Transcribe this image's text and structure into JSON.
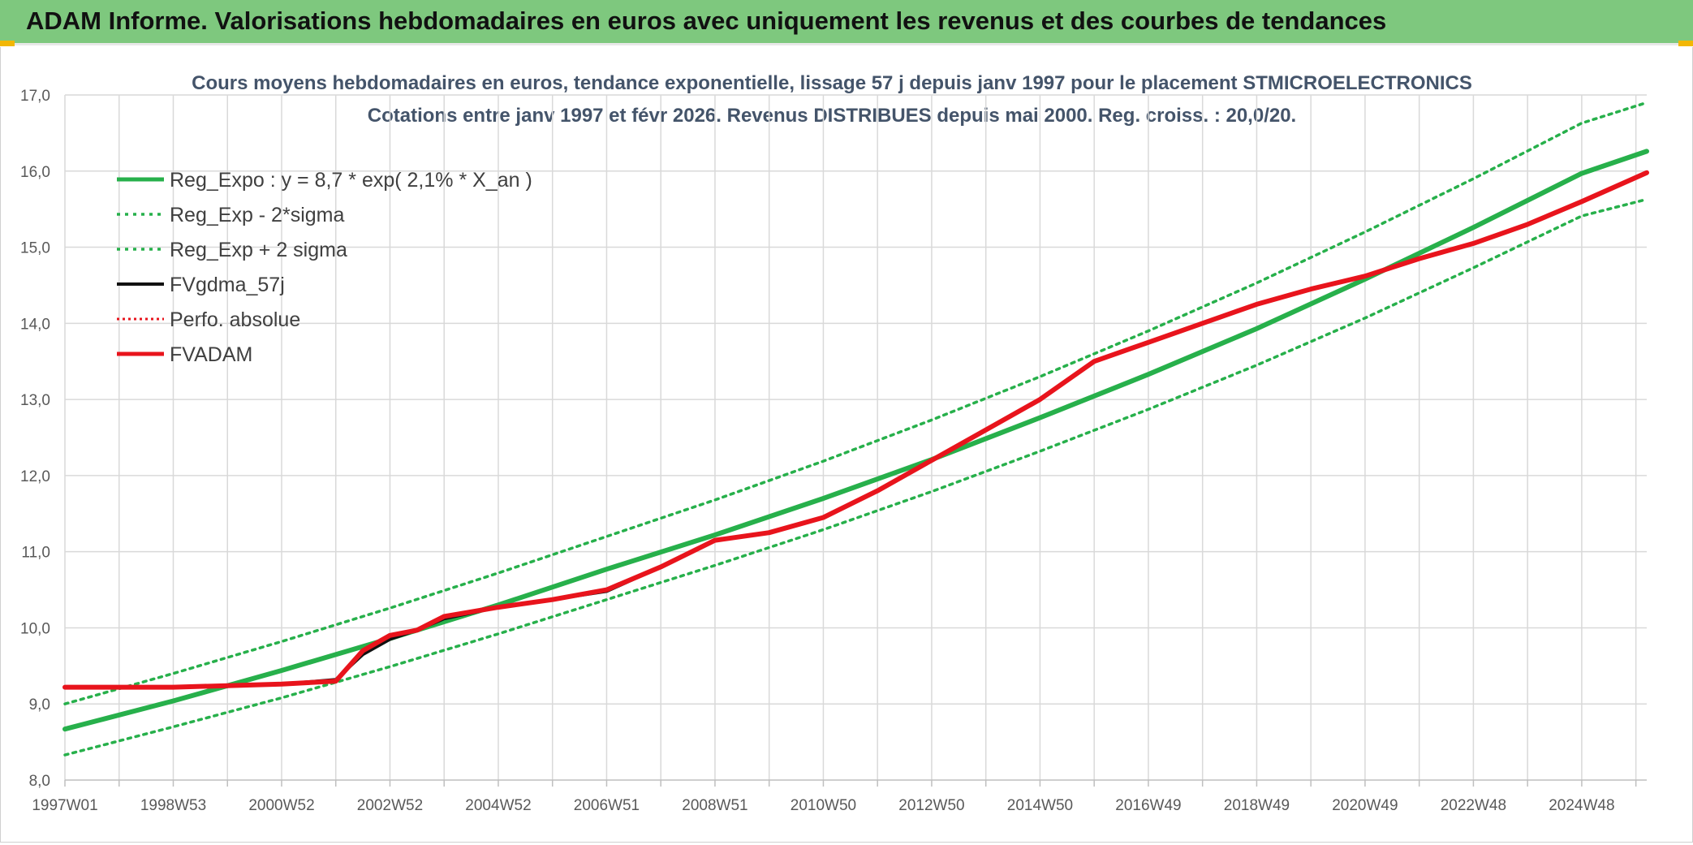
{
  "header": {
    "title": "ADAM Informe. Valorisations hebdomadaires en euros avec uniquement les revenus et des courbes de tendances"
  },
  "chart_data": {
    "type": "line",
    "title": "Cours moyens hebdomadaires en euros, tendance exponentielle, lissage 57 j depuis janv 1997 pour le placement STMICROELECTRONICS",
    "subtitle": "Cotations entre janv 1997 et févr 2026. Revenus DISTRIBUES depuis mai 2000. Reg. croiss. : 20,0/20.",
    "xlabel": "",
    "ylabel": "",
    "ylim": [
      8.0,
      17.0
    ],
    "y_ticks": [
      "8,0",
      "9,0",
      "10,0",
      "11,0",
      "12,0",
      "13,0",
      "14,0",
      "15,0",
      "16,0",
      "17,0"
    ],
    "x_range": [
      1997.0,
      2026.2
    ],
    "x_ticks": [
      {
        "x": 1997.0,
        "label": "1997W01"
      },
      {
        "x": 1999.0,
        "label": "1998W53"
      },
      {
        "x": 2001.0,
        "label": "2000W52"
      },
      {
        "x": 2003.0,
        "label": "2002W52"
      },
      {
        "x": 2005.0,
        "label": "2004W52"
      },
      {
        "x": 2007.0,
        "label": "2006W51"
      },
      {
        "x": 2009.0,
        "label": "2008W51"
      },
      {
        "x": 2011.0,
        "label": "2010W50"
      },
      {
        "x": 2013.0,
        "label": "2012W50"
      },
      {
        "x": 2015.0,
        "label": "2014W50"
      },
      {
        "x": 2017.0,
        "label": "2016W49"
      },
      {
        "x": 2019.0,
        "label": "2018W49"
      },
      {
        "x": 2021.0,
        "label": "2020W49"
      },
      {
        "x": 2023.0,
        "label": "2022W48"
      },
      {
        "x": 2025.0,
        "label": "2024W48"
      }
    ],
    "grid": true,
    "legend_position": "top-left",
    "series": [
      {
        "name": "Reg_Expo : y = 8,7 * exp( 2,1% *  X_an )",
        "color": "#27b04b",
        "style": "solid",
        "width": 6,
        "x": [
          1997,
          1999,
          2001,
          2003,
          2005,
          2007,
          2009,
          2011,
          2013,
          2015,
          2017,
          2019,
          2021,
          2023,
          2025,
          2026.2
        ],
        "y": [
          8.67,
          9.04,
          9.44,
          9.86,
          10.3,
          10.77,
          11.22,
          11.7,
          12.21,
          12.76,
          13.33,
          13.93,
          14.58,
          15.26,
          15.97,
          16.26
        ]
      },
      {
        "name": "Reg_Exp - 2*sigma",
        "color": "#27b04b",
        "style": "dotted",
        "width": 3.5,
        "x": [
          1997,
          1999,
          2001,
          2003,
          2005,
          2007,
          2009,
          2011,
          2013,
          2015,
          2017,
          2019,
          2021,
          2023,
          2025,
          2026.2
        ],
        "y": [
          8.33,
          8.7,
          9.08,
          9.49,
          9.92,
          10.37,
          10.82,
          11.29,
          11.79,
          12.32,
          12.87,
          13.45,
          14.07,
          14.73,
          15.41,
          15.63
        ]
      },
      {
        "name": "Reg_Exp + 2 sigma",
        "color": "#27b04b",
        "style": "dotted",
        "width": 3.5,
        "x": [
          1997,
          1999,
          2001,
          2003,
          2005,
          2007,
          2009,
          2011,
          2013,
          2015,
          2017,
          2019,
          2021,
          2023,
          2025,
          2026.2
        ],
        "y": [
          9.0,
          9.4,
          9.82,
          10.26,
          10.72,
          11.2,
          11.68,
          12.19,
          12.73,
          13.3,
          13.9,
          14.53,
          15.2,
          15.9,
          16.63,
          16.9
        ]
      },
      {
        "name": "FVgdma_57j",
        "color": "#111111",
        "style": "solid",
        "width": 4,
        "x": [
          1997,
          1998,
          1999,
          2000,
          2001,
          2002,
          2002.5,
          2003,
          2003.5,
          2004,
          2005,
          2006,
          2007,
          2008,
          2009,
          2010,
          2011,
          2012,
          2013,
          2014,
          2015,
          2016,
          2017,
          2018,
          2019,
          2020,
          2021,
          2022,
          2023,
          2024,
          2025,
          2026.2
        ],
        "y": [
          9.22,
          9.22,
          9.22,
          9.24,
          9.26,
          9.32,
          9.65,
          9.85,
          9.97,
          10.12,
          10.27,
          10.37,
          10.48,
          10.8,
          11.15,
          11.25,
          11.45,
          11.8,
          12.2,
          12.6,
          13.0,
          13.5,
          13.75,
          14.0,
          14.25,
          14.45,
          14.62,
          14.85,
          15.05,
          15.3,
          15.6,
          15.98
        ]
      },
      {
        "name": "Perfo. absolue",
        "color": "#e8141c",
        "style": "dotted",
        "width": 3,
        "x": [
          1997,
          1998,
          1999,
          2000,
          2001,
          2002,
          2002.5,
          2003,
          2003.5,
          2004,
          2005,
          2006,
          2007,
          2008,
          2009,
          2010,
          2011,
          2012,
          2013,
          2014,
          2015,
          2016,
          2017,
          2018,
          2019,
          2020,
          2021,
          2022,
          2023,
          2024,
          2025,
          2026.2
        ],
        "y": [
          9.22,
          9.22,
          9.22,
          9.24,
          9.26,
          9.3,
          9.7,
          9.9,
          9.97,
          10.15,
          10.27,
          10.37,
          10.5,
          10.8,
          11.15,
          11.25,
          11.45,
          11.8,
          12.2,
          12.6,
          13.0,
          13.5,
          13.75,
          14.0,
          14.25,
          14.45,
          14.62,
          14.85,
          15.05,
          15.3,
          15.6,
          15.98
        ]
      },
      {
        "name": "FVADAM",
        "color": "#e8141c",
        "style": "solid",
        "width": 6,
        "x": [
          1997,
          1998,
          1999,
          2000,
          2001,
          2002,
          2002.5,
          2003,
          2003.5,
          2004,
          2005,
          2006,
          2007,
          2008,
          2009,
          2010,
          2011,
          2012,
          2013,
          2014,
          2015,
          2016,
          2017,
          2018,
          2019,
          2020,
          2021,
          2022,
          2023,
          2024,
          2025,
          2026.2
        ],
        "y": [
          9.22,
          9.22,
          9.22,
          9.24,
          9.26,
          9.3,
          9.7,
          9.9,
          9.97,
          10.15,
          10.27,
          10.37,
          10.5,
          10.8,
          11.15,
          11.25,
          11.45,
          11.8,
          12.2,
          12.6,
          13.0,
          13.5,
          13.75,
          14.0,
          14.25,
          14.45,
          14.62,
          14.85,
          15.05,
          15.3,
          15.6,
          15.98
        ]
      }
    ]
  }
}
